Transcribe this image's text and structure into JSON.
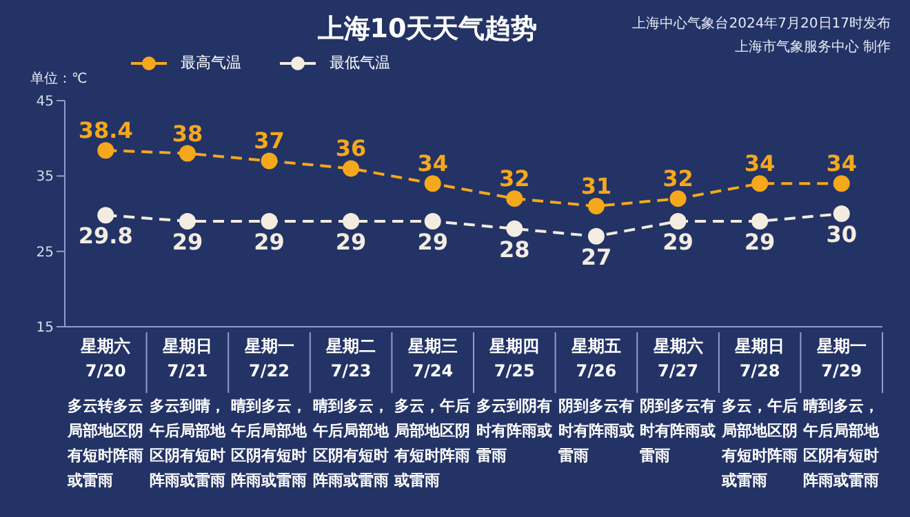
{
  "chart_data": {
    "type": "line",
    "title": "上海10天天气趋势",
    "ylabel": "单位：℃",
    "categories": [
      "星期六\n7/20",
      "星期日\n7/21",
      "星期一\n7/22",
      "星期二\n7/23",
      "星期三\n7/24",
      "星期四\n7/25",
      "星期五\n7/26",
      "星期六\n7/27",
      "星期日\n7/28",
      "星期一\n7/29"
    ],
    "series": [
      {
        "name": "最高气温",
        "color": "#f5a81c",
        "values": [
          38.4,
          38,
          37,
          36,
          34,
          32,
          31,
          32,
          34,
          34
        ]
      },
      {
        "name": "最低气温",
        "color": "#f3ece0",
        "values": [
          29.8,
          29,
          29,
          29,
          29,
          28,
          27,
          29,
          29,
          30
        ]
      }
    ],
    "ylim": [
      15,
      45
    ],
    "yticks": [
      15,
      25,
      35,
      45
    ],
    "grid": false,
    "legend": "top left",
    "marker": "circle",
    "line_style": "dashed",
    "data_labels": true,
    "annotations": [
      "上海中心气象台2024年7月20日17时发布",
      "上海市气象服务中心 制作",
      "多云转多云局部地区阴有短时阵雨或雷雨",
      "多云到晴，午后局部地区阴有短时阵雨或雷雨",
      "晴到多云，午后局部地区阴有短时阵雨或雷雨",
      "晴到多云，午后局部地区阴有短时阵雨或雷雨",
      "多云，午后局部地区阴有短时阵雨或雷雨",
      "多云到阴有时有阵雨或雷雨",
      "阴到多云有时有阵雨或雷雨",
      "阴到多云有时有阵雨或雷雨",
      "多云，午后局部地区阴有短时阵雨或雷雨",
      "晴到多云，午后局部地区阴有短时阵雨或雷雨"
    ]
  }
}
